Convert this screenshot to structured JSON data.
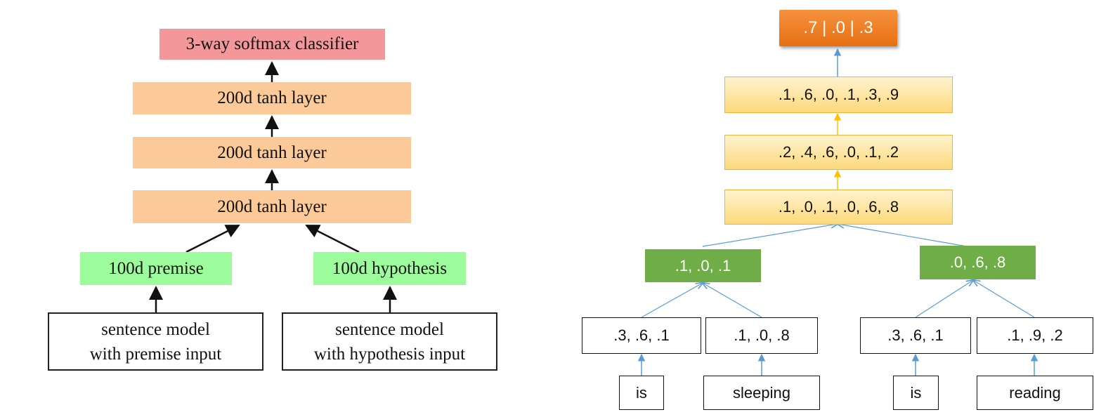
{
  "left_diagram": {
    "softmax": "3-way softmax classifier",
    "tanh_layers": [
      "200d tanh layer",
      "200d tanh layer",
      "200d tanh layer"
    ],
    "premise": "100d premise",
    "hypothesis": "100d hypothesis",
    "premise_model": [
      "sentence model",
      "with premise input"
    ],
    "hypothesis_model": [
      "sentence model",
      "with hypothesis input"
    ]
  },
  "right_diagram": {
    "output": ".7 | .0 | .3",
    "layers": [
      ".1, .6, .0, .1, .3, .9",
      ".2, .4, .6, .0, .1, .2",
      ".1, .0, .1, .0, .6, .8"
    ],
    "phrase_vectors": [
      ".1, .0, .1",
      ".0, .6, .8"
    ],
    "word_vectors": [
      ".3, .6, .1",
      ".1, .0, .8",
      ".3, .6, .1",
      ".1, .9, .2"
    ],
    "words": [
      "is",
      "sleeping",
      "is",
      "reading"
    ]
  },
  "colors": {
    "softmax": "#f4979b",
    "tanh": "#fcca98",
    "input_vectors": "#9cfc9c",
    "output_box": "#ed7d31",
    "hidden_layers": "#ffe699",
    "phrase_boxes": "#70ad47",
    "tree_arrows": "#5b9bd5",
    "hidden_arrows": "#ffc000"
  }
}
